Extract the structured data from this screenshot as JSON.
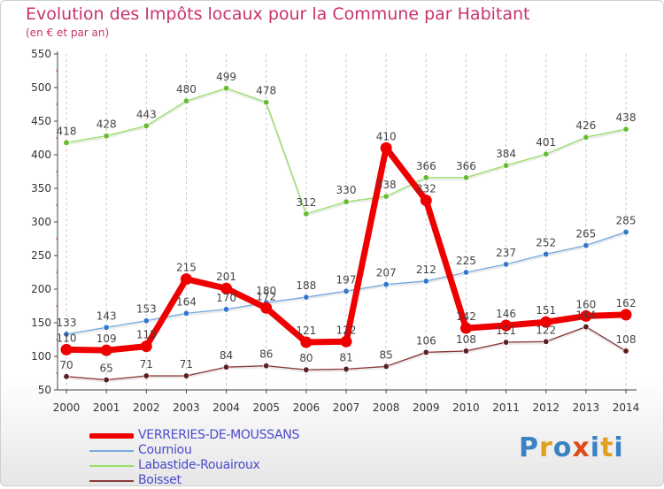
{
  "chart_data": {
    "type": "line",
    "title": "Evolution des Impôts locaux pour la Commune par Habitant",
    "subtitle": "(en € et par an)",
    "x": [
      2000,
      2001,
      2002,
      2003,
      2004,
      2005,
      2006,
      2007,
      2008,
      2009,
      2010,
      2011,
      2012,
      2013,
      2014
    ],
    "ylim": [
      50,
      550
    ],
    "yticks": [
      50,
      100,
      150,
      200,
      250,
      300,
      350,
      400,
      450,
      500,
      550
    ],
    "grid": "vertical-dashed",
    "legend_position": "bottom-left",
    "series": [
      {
        "name": "Labastide-Rouairoux",
        "color": "#99dd66",
        "marker": "#66bb33",
        "values": [
          418,
          428,
          443,
          480,
          499,
          478,
          312,
          330,
          338,
          366,
          366,
          384,
          401,
          426,
          438
        ]
      },
      {
        "name": "Courniou",
        "color": "#77aadd",
        "marker": "#3377cc",
        "values": [
          133,
          143,
          153,
          164,
          170,
          180,
          188,
          197,
          207,
          212,
          225,
          237,
          252,
          265,
          285
        ]
      },
      {
        "name": "Boisset",
        "color": "#8b3a3a",
        "marker": "#5a1f1f",
        "values": [
          70,
          65,
          71,
          71,
          84,
          86,
          80,
          81,
          85,
          106,
          108,
          121,
          122,
          144,
          108
        ]
      },
      {
        "name": "VERRERIES-DE-MOUSSANS",
        "color": "#ee0000",
        "marker": "#ee0000",
        "values": [
          110,
          109,
          115,
          215,
          201,
          172,
          121,
          122,
          410,
          332,
          142,
          146,
          151,
          160,
          162
        ]
      }
    ]
  },
  "legend": {
    "items": [
      {
        "label": "VERRERIES-DE-MOUSSANS",
        "color": "#ee0000"
      },
      {
        "label": "Courniou",
        "color": "#77aadd"
      },
      {
        "label": "Labastide-Rouairoux",
        "color": "#99dd66"
      },
      {
        "label": "Boisset",
        "color": "#8b3a3a"
      }
    ]
  },
  "logo": {
    "text": "Proxiti",
    "colors": [
      "#3b82c4",
      "#e0a020",
      "#3b82c4",
      "#e04a1a",
      "#3b82c4",
      "#e0a020",
      "#3b82c4"
    ]
  }
}
